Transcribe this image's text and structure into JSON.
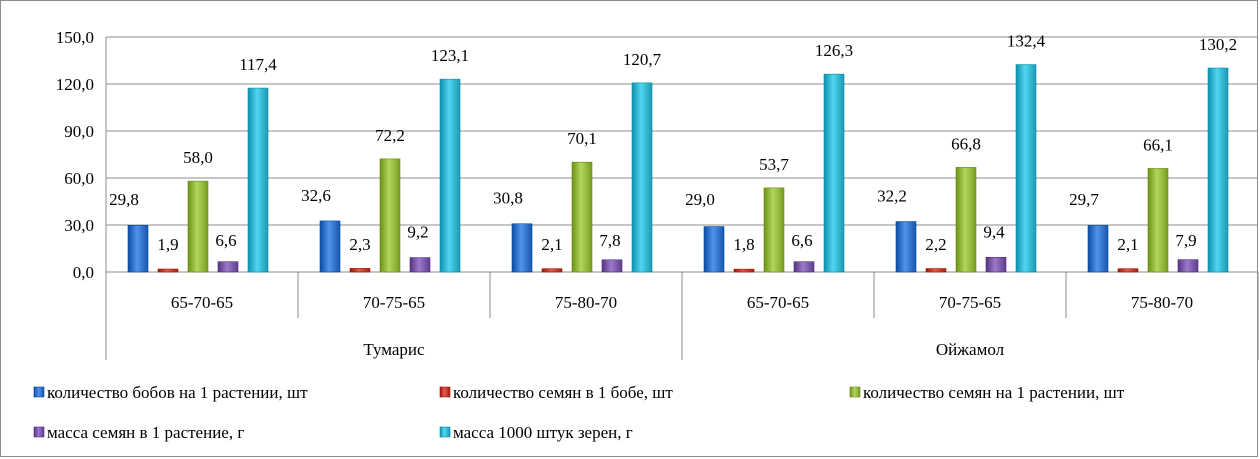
{
  "chart_data": {
    "type": "bar",
    "groups": [
      {
        "name": "Тумарис",
        "categories": [
          "65-70-65",
          "70-75-65",
          "75-80-70"
        ]
      },
      {
        "name": "Ойжамол",
        "categories": [
          "65-70-65",
          "70-75-65",
          "75-80-70"
        ]
      }
    ],
    "categories": [
      "65-70-65",
      "70-75-65",
      "75-80-70",
      "65-70-65",
      "70-75-65",
      "75-80-70"
    ],
    "series": [
      {
        "name": "количество бобов на 1 растении, шт",
        "color": "#2e6fc7",
        "values": [
          29.8,
          32.6,
          30.8,
          29.0,
          32.2,
          29.7
        ],
        "labels": [
          "29,8",
          "32,6",
          "30,8",
          "29,0",
          "32,2",
          "29,7"
        ]
      },
      {
        "name": "количество семян в 1 бобе, шт",
        "color": "#c0392b",
        "values": [
          1.9,
          2.3,
          2.1,
          1.8,
          2.2,
          2.1
        ],
        "labels": [
          "1,9",
          "2,3",
          "2,1",
          "1,8",
          "2,2",
          "2,1"
        ]
      },
      {
        "name": "количество семян на 1 растении, шт",
        "color": "#8fb43a",
        "values": [
          58.0,
          72.2,
          70.1,
          53.7,
          66.8,
          66.1
        ],
        "labels": [
          "58,0",
          "72,2",
          "70,1",
          "53,7",
          "66,8",
          "66,1"
        ]
      },
      {
        "name": "масса семян в 1 растение, г",
        "color": "#7a56a8",
        "values": [
          6.6,
          9.2,
          7.8,
          6.6,
          9.4,
          7.9
        ],
        "labels": [
          "6,6",
          "9,2",
          "7,8",
          "6,6",
          "9,4",
          "7,9"
        ]
      },
      {
        "name": "масса 1000 штук зерен, г",
        "color": "#2fb3cf",
        "values": [
          117.4,
          123.1,
          120.7,
          126.3,
          132.4,
          130.2
        ],
        "labels": [
          "117,4",
          "123,1",
          "120,7",
          "126,3",
          "132,4",
          "130,2"
        ]
      }
    ],
    "ylim": [
      0,
      150
    ],
    "yticks": [
      0,
      30,
      60,
      90,
      120,
      150
    ],
    "ytick_labels": [
      "0,0",
      "30,0",
      "60,0",
      "90,0",
      "120,0",
      "150,0"
    ],
    "grid": true,
    "legend_position": "bottom"
  }
}
